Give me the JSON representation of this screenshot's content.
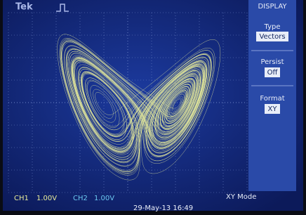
{
  "header": {
    "brand": "Tek"
  },
  "menu": {
    "title": "DISPLAY",
    "items": [
      {
        "label": "Type",
        "value": "Vectors"
      },
      {
        "label": "Persist",
        "value": "Off"
      },
      {
        "label": "Format",
        "value": "XY"
      }
    ]
  },
  "status": {
    "ch1_label": "CH1",
    "ch1_scale": "1.00V",
    "ch2_label": "CH2",
    "ch2_scale": "1.00V",
    "mode": "XY Mode",
    "timestamp": "29-May-13 16:49"
  }
}
